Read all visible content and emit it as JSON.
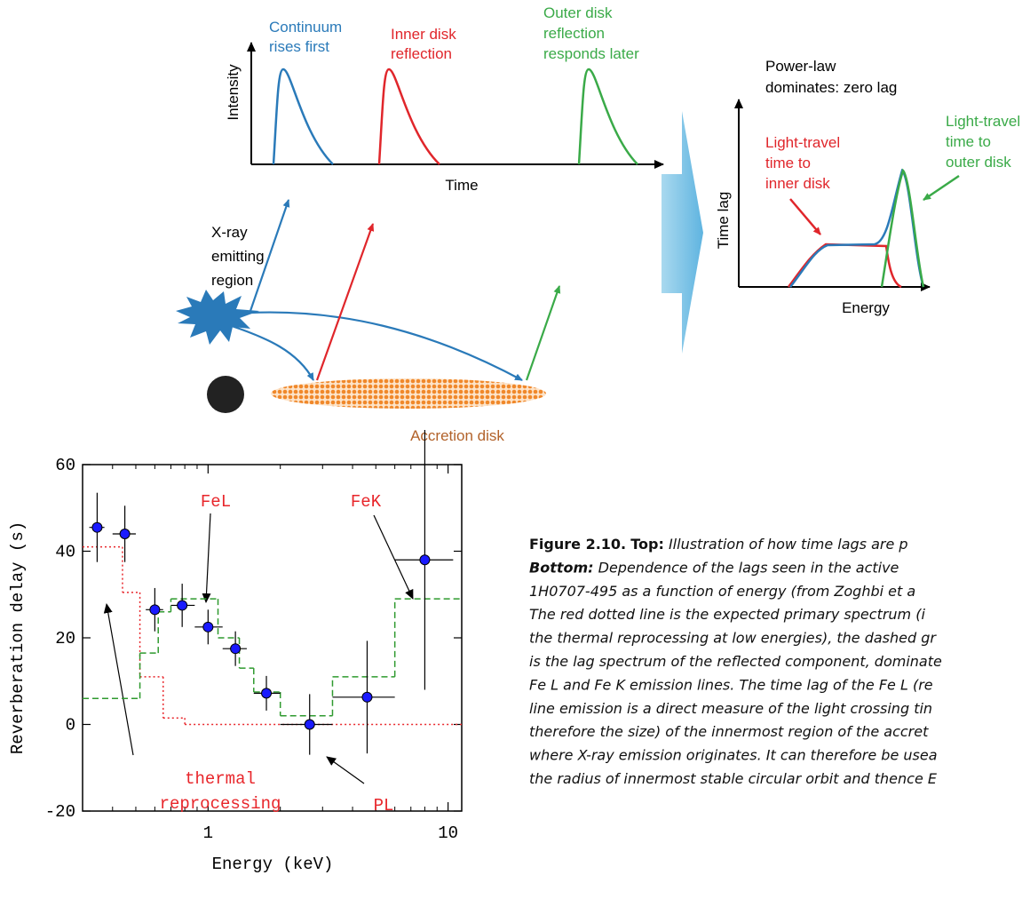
{
  "diagram": {
    "continuum": [
      "Continuum",
      "rises first"
    ],
    "inner": [
      "Inner disk",
      "reflection"
    ],
    "outer": [
      "Outer disk",
      "reflection",
      "responds later"
    ],
    "intensity": "Intensity",
    "time": "Time",
    "xray": [
      "X-ray",
      "emitting",
      "region"
    ],
    "disk": "Accretion disk",
    "powerlaw": [
      "Power-law",
      "dominates: zero lag"
    ],
    "timelag": "Time lag",
    "energy": "Energy",
    "inner_travel": [
      "Light-travel",
      "time to",
      "inner disk"
    ],
    "outer_travel": [
      "Light-travel",
      "time to",
      "outer disk"
    ]
  },
  "chart_data": {
    "type": "scatter",
    "xlabel": "Energy (keV)",
    "ylabel": "Reverberation delay (s)",
    "xscale": "log",
    "xlim": [
      0.3,
      11.4
    ],
    "ylim": [
      -20,
      60
    ],
    "xticks": [
      1,
      10
    ],
    "xminorticks": [
      0.4,
      0.5,
      0.6,
      0.7,
      0.8,
      0.9,
      2,
      3,
      4,
      5,
      6,
      7,
      8,
      9
    ],
    "yticks": [
      -20,
      0,
      20,
      40,
      60
    ],
    "color": "#1a1aff",
    "x": [
      0.345,
      0.45,
      0.6,
      0.78,
      1.0,
      1.3,
      1.75,
      2.65,
      4.6,
      8.0
    ],
    "x_low": [
      0.32,
      0.4,
      0.55,
      0.7,
      0.88,
      1.15,
      1.55,
      2.0,
      3.3,
      6.0
    ],
    "x_high": [
      0.37,
      0.5,
      0.65,
      0.88,
      1.15,
      1.45,
      2.0,
      3.3,
      6.0,
      10.5
    ],
    "values": [
      45.5,
      44,
      26.5,
      27.5,
      22.5,
      17.5,
      7.2,
      0,
      6.3,
      38
    ],
    "y_err": [
      8,
      6.5,
      5,
      5,
      4,
      4,
      4,
      7,
      13,
      30
    ],
    "step_lines": [
      {
        "color": "#e8262b",
        "style": "dotted",
        "bins": [
          0.3,
          0.44,
          0.52,
          0.65,
          0.8,
          11.4
        ],
        "values": [
          41,
          30.5,
          11,
          1.5,
          0
        ]
      },
      {
        "color": "#2f9a2f",
        "style": "dashed",
        "bins": [
          0.3,
          0.52,
          0.62,
          0.7,
          1.1,
          1.35,
          1.55,
          2.0,
          3.3,
          6.0,
          11.4
        ],
        "values": [
          6,
          16.5,
          26,
          29,
          20,
          13,
          7.5,
          2,
          11,
          29
        ]
      }
    ],
    "annotations": [
      "FeL",
      "FeK",
      "thermal",
      "reprocessing",
      "PL"
    ]
  },
  "caption": {
    "figure": "Figure 2.10.",
    "top_label": "Top:",
    "bottom_label": "Bottom:",
    "lines": [
      "Illustration of how time lags are p",
      "Dependence of the lags seen in the active",
      "1H0707-495 as a function of energy (from Zoghbi et a",
      "The red dotted line is the expected primary spectrum (i",
      "the thermal reprocessing at low energies), the dashed gr",
      "is the lag spectrum of the reflected component, dominate",
      "Fe L and Fe K emission lines. The time lag of the Fe L (re",
      "line emission is a direct measure of the light crossing tin",
      "therefore the size) of the innermost region of the accret",
      "where X-ray emission originates. It can therefore be usea",
      "the radius of innermost stable circular orbit and thence E"
    ]
  }
}
